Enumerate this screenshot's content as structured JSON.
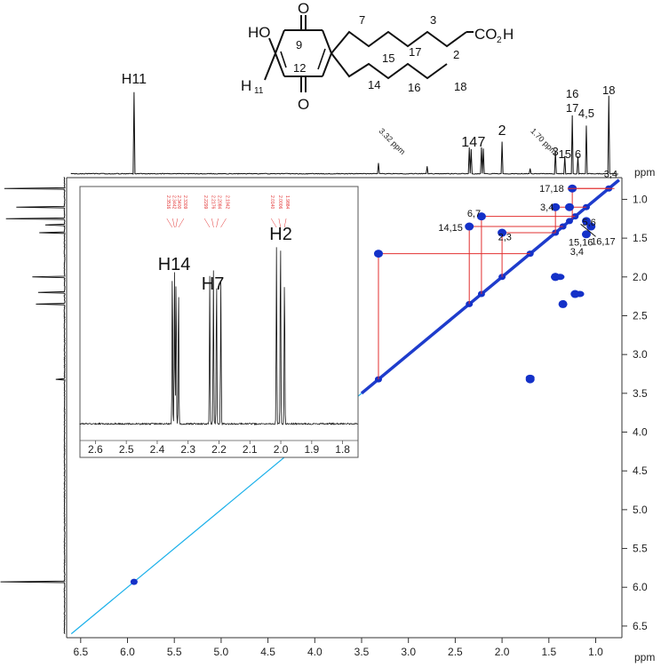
{
  "chart_data": {
    "type": "scatter",
    "subtype": "2D COSY NMR spectrum",
    "x_axis": {
      "unit": "ppm",
      "lim": [
        6.65,
        0.72
      ],
      "reversed": true,
      "ticks": [
        "6.5",
        "6.0",
        "5.5",
        "5.0",
        "4.5",
        "4.0",
        "3.5",
        "3.0",
        "2.5",
        "2.0",
        "1.5",
        "1.0"
      ],
      "tick_values": [
        6.5,
        6.0,
        5.5,
        5.0,
        4.5,
        4.0,
        3.5,
        3.0,
        2.5,
        2.0,
        1.5,
        1.0
      ]
    },
    "y_axis": {
      "unit": "ppm",
      "lim": [
        0.72,
        6.65
      ],
      "reversed": true,
      "ticks": [
        "1.0",
        "1.5",
        "2.0",
        "2.5",
        "3.0",
        "3.5",
        "4.0",
        "4.5",
        "5.0",
        "5.5",
        "6.0",
        "6.5"
      ],
      "tick_values": [
        1.0,
        1.5,
        2.0,
        2.5,
        3.0,
        3.5,
        4.0,
        4.5,
        5.0,
        5.5,
        6.0,
        6.5
      ]
    },
    "x_unit_label": "ppm",
    "y_unit_label": "ppm",
    "diagonal_peaks": [
      5.93,
      3.32,
      2.35,
      2.22,
      2.0,
      1.7,
      1.43,
      1.35,
      1.28,
      1.22,
      1.1,
      0.86
    ],
    "cross_peaks": [
      {
        "x": 1.25,
        "y": 0.86
      },
      {
        "x": 2.22,
        "y": 1.22
      },
      {
        "x": 1.43,
        "y": 1.1
      },
      {
        "x": 2.35,
        "y": 1.35
      },
      {
        "x": 2.0,
        "y": 1.43
      },
      {
        "x": 3.32,
        "y": 1.7
      },
      {
        "x": 1.22,
        "y": 2.22
      },
      {
        "x": 1.43,
        "y": 2.0
      },
      {
        "x": 1.28,
        "y": 1.1
      },
      {
        "x": 1.1,
        "y": 1.28
      },
      {
        "x": 1.1,
        "y": 1.45
      },
      {
        "x": 1.05,
        "y": 1.35
      },
      {
        "x": 1.7,
        "y": 3.32
      },
      {
        "x": 1.35,
        "y": 2.35
      },
      {
        "x": 1.43,
        "y": 2.0
      }
    ],
    "peak_labels": [
      {
        "text": "17,18",
        "x": 1.47,
        "y": 0.86
      },
      {
        "text": "6,7",
        "x": 2.3,
        "y": 1.18
      },
      {
        "text": "3,4",
        "x": 1.52,
        "y": 1.1
      },
      {
        "text": "14,15",
        "x": 2.55,
        "y": 1.36
      },
      {
        "text": "2,3",
        "x": 1.97,
        "y": 1.48
      },
      {
        "text": "3,4",
        "x": 0.84,
        "y": 0.67
      },
      {
        "text": "5,6",
        "x": 1.07,
        "y": 1.29
      },
      {
        "text": "15,16",
        "x": 1.16,
        "y": 1.55
      },
      {
        "text": "3,4",
        "x": 1.2,
        "y": 1.67
      },
      {
        "text": "16,17",
        "x": 0.92,
        "y": 1.54
      }
    ],
    "top_projection_labels": [
      {
        "text": "H11",
        "x": 5.93
      },
      {
        "text": "14",
        "x": 2.35
      },
      {
        "text": "7",
        "x": 2.22
      },
      {
        "text": "2",
        "x": 2.0
      },
      {
        "text": "3",
        "x": 1.43
      },
      {
        "text": "15",
        "x": 1.33
      },
      {
        "text": "6",
        "x": 1.19
      },
      {
        "text": "16",
        "x": 1.25
      },
      {
        "text": "17",
        "x": 1.25
      },
      {
        "text": "4,5",
        "x": 1.1
      },
      {
        "text": "18",
        "x": 0.86
      }
    ],
    "top_annotations": [
      {
        "text": "3.32 ppm",
        "x": 3.32
      },
      {
        "text": "1.70 ppm",
        "x": 1.7
      }
    ],
    "inset": {
      "type": "line",
      "x_ticks": [
        "2.6",
        "2.5",
        "2.4",
        "2.3",
        "2.2",
        "2.1",
        "2.0",
        "1.9",
        "1.8"
      ],
      "x_tick_values": [
        2.6,
        2.5,
        2.4,
        2.3,
        2.2,
        2.1,
        2.0,
        1.9,
        1.8
      ],
      "xlim": [
        2.65,
        1.75
      ],
      "peak_groups": [
        {
          "label": "H14",
          "center": 2.345
        },
        {
          "label": "H7",
          "center": 2.22
        },
        {
          "label": "H2",
          "center": 2.0
        }
      ],
      "red_peak_picks": [
        "2.3516",
        "2.3442",
        "2.3400",
        "2.3309",
        "2.2299",
        "2.2176",
        "2.2084",
        "2.1942",
        "2.0140",
        "2.0006",
        "1.9884"
      ]
    }
  },
  "structure": {
    "atoms": {
      "HO": "HO",
      "O_top": "O",
      "O_bottom": "O",
      "H11": "H",
      "H11_sub": "11",
      "CO2H": "CO",
      "CO2H_sub": "2",
      "CO2H_end": "H"
    },
    "numbers": [
      "9",
      "12",
      "7",
      "3",
      "2",
      "17",
      "15",
      "16",
      "14",
      "18"
    ]
  }
}
